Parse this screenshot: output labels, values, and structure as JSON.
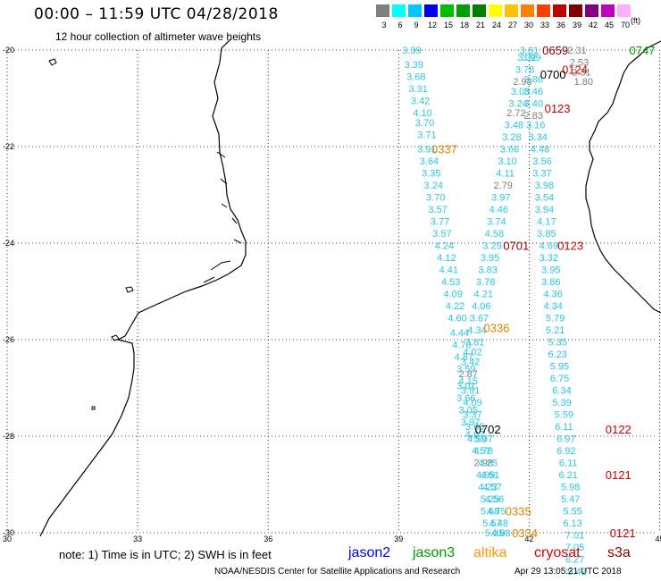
{
  "title": "00:00 – 11:59 UTC 04/28/2018",
  "subtitle": "12 hour collection of altimeter wave heights",
  "scale": {
    "labels": [
      "3",
      "6",
      "9",
      "12",
      "15",
      "18",
      "21",
      "24",
      "27",
      "30",
      "33",
      "36",
      "39",
      "42",
      "45",
      "70"
    ],
    "colors": [
      "#808080",
      "#00ffff",
      "#00c8ff",
      "#0000ff",
      "#00c000",
      "#00a000",
      "#008000",
      "#ffff00",
      "#ffc000",
      "#ff8000",
      "#ff4000",
      "#c00000",
      "#800000",
      "#800080",
      "#c000c0",
      "#ffb0ff"
    ],
    "unit": "(ft)"
  },
  "axes": {
    "lat_labels": [
      "-20",
      "-22",
      "-24",
      "-26",
      "-28",
      "-30"
    ],
    "lon_labels": [
      "30",
      "33",
      "36",
      "39",
      "42",
      "45"
    ]
  },
  "tracks": [
    {
      "color": "#28c8e0",
      "points": [
        {
          "lon": 39.3,
          "lat": -20.0,
          "v": "3.39"
        },
        {
          "lon": 39.35,
          "lat": -20.3,
          "v": "3.39"
        },
        {
          "lon": 39.4,
          "lat": -20.55,
          "v": "3.68"
        },
        {
          "lon": 39.45,
          "lat": -20.8,
          "v": "3.31"
        },
        {
          "lon": 39.5,
          "lat": -21.05,
          "v": "3.42"
        },
        {
          "lon": 39.55,
          "lat": -21.3,
          "v": "4.10"
        },
        {
          "lon": 39.6,
          "lat": -21.5,
          "v": "3.70"
        },
        {
          "lon": 39.65,
          "lat": -21.75,
          "v": "3.71"
        },
        {
          "lon": 39.65,
          "lat": -22.05,
          "v": "3.91"
        },
        {
          "lon": 39.7,
          "lat": -22.3,
          "v": "3.64"
        },
        {
          "lon": 39.75,
          "lat": -22.55,
          "v": "3.35"
        },
        {
          "lon": 39.8,
          "lat": -22.8,
          "v": "3.24"
        },
        {
          "lon": 39.85,
          "lat": -23.05,
          "v": "3.70"
        },
        {
          "lon": 39.9,
          "lat": -23.3,
          "v": "3.57"
        },
        {
          "lon": 39.95,
          "lat": -23.55,
          "v": "3.77"
        },
        {
          "lon": 40.0,
          "lat": -23.8,
          "v": "3.57"
        },
        {
          "lon": 40.05,
          "lat": -24.05,
          "v": "4.24"
        },
        {
          "lon": 40.1,
          "lat": -24.3,
          "v": "4.12"
        },
        {
          "lon": 40.15,
          "lat": -24.55,
          "v": "4.41"
        },
        {
          "lon": 40.2,
          "lat": -24.8,
          "v": "4.53"
        },
        {
          "lon": 40.25,
          "lat": -25.05,
          "v": "4.09"
        },
        {
          "lon": 40.3,
          "lat": -25.3,
          "v": "4.22"
        },
        {
          "lon": 40.35,
          "lat": -25.55,
          "v": "4.60"
        },
        {
          "lon": 40.4,
          "lat": -25.85,
          "v": "4.44"
        },
        {
          "lon": 40.45,
          "lat": -26.1,
          "v": "4.70"
        },
        {
          "lon": 40.5,
          "lat": -26.35,
          "v": "4.87"
        },
        {
          "lon": 40.55,
          "lat": -26.6,
          "v": "3.59"
        },
        {
          "lon": 40.6,
          "lat": -26.85,
          "v": "4.15"
        },
        {
          "lon": 40.65,
          "lat": -27.05,
          "v": "3.91"
        },
        {
          "lon": 40.7,
          "lat": -27.3,
          "v": "4.09"
        },
        {
          "lon": 40.7,
          "lat": -27.55,
          "v": "3.37"
        },
        {
          "lon": 40.75,
          "lat": -27.8,
          "v": "3.65"
        },
        {
          "lon": 40.8,
          "lat": -28.05,
          "v": "4.59"
        },
        {
          "lon": 40.9,
          "lat": -28.3,
          "v": "4.57"
        },
        {
          "lon": 40.95,
          "lat": -28.55,
          "v": "2.98"
        },
        {
          "lon": 41.0,
          "lat": -28.8,
          "v": "4.99"
        },
        {
          "lon": 41.05,
          "lat": -29.05,
          "v": "4.23"
        },
        {
          "lon": 41.1,
          "lat": -29.3,
          "v": "5.25"
        },
        {
          "lon": 41.1,
          "lat": -29.55,
          "v": "5.68"
        },
        {
          "lon": 41.15,
          "lat": -29.8,
          "v": "5.57"
        },
        {
          "lon": 41.2,
          "lat": -30.0,
          "v": "5.35"
        }
      ]
    },
    {
      "color": "#28c8e0",
      "points": [
        {
          "lon": 42.0,
          "lat": -20.0,
          "v": "3.61"
        },
        {
          "lon": 41.95,
          "lat": -20.15,
          "v": "3.32"
        },
        {
          "lon": 41.9,
          "lat": -20.4,
          "v": "3.78"
        },
        {
          "lon": 41.85,
          "lat": -20.65,
          "v": "2.98"
        },
        {
          "lon": 41.8,
          "lat": -20.85,
          "v": "3.05"
        },
        {
          "lon": 41.75,
          "lat": -21.1,
          "v": "3.24"
        },
        {
          "lon": 41.7,
          "lat": -21.3,
          "v": "2.72"
        },
        {
          "lon": 41.65,
          "lat": -21.55,
          "v": "3.48"
        },
        {
          "lon": 41.6,
          "lat": -21.8,
          "v": "3.28"
        },
        {
          "lon": 41.55,
          "lat": -22.05,
          "v": "3.66"
        },
        {
          "lon": 41.5,
          "lat": -22.3,
          "v": "3.10"
        },
        {
          "lon": 41.45,
          "lat": -22.55,
          "v": "4.11"
        },
        {
          "lon": 41.4,
          "lat": -22.8,
          "v": "2.79"
        },
        {
          "lon": 41.35,
          "lat": -23.05,
          "v": "3.97"
        },
        {
          "lon": 41.3,
          "lat": -23.3,
          "v": "4.46"
        },
        {
          "lon": 41.25,
          "lat": -23.55,
          "v": "3.74"
        },
        {
          "lon": 41.2,
          "lat": -23.8,
          "v": "4.58"
        },
        {
          "lon": 41.15,
          "lat": -24.05,
          "v": "3.25"
        },
        {
          "lon": 41.1,
          "lat": -24.3,
          "v": "3.95"
        },
        {
          "lon": 41.05,
          "lat": -24.55,
          "v": "3.83"
        },
        {
          "lon": 41.0,
          "lat": -24.8,
          "v": "3.78"
        },
        {
          "lon": 40.95,
          "lat": -25.05,
          "v": "4.21"
        },
        {
          "lon": 40.9,
          "lat": -25.3,
          "v": "4.06"
        },
        {
          "lon": 40.85,
          "lat": -25.55,
          "v": "3.67"
        },
        {
          "lon": 40.8,
          "lat": -25.8,
          "v": "4.34"
        },
        {
          "lon": 40.75,
          "lat": -26.05,
          "v": "3.81"
        },
        {
          "lon": 40.7,
          "lat": -26.25,
          "v": "4.02"
        },
        {
          "lon": 40.65,
          "lat": -26.45,
          "v": "3.42"
        },
        {
          "lon": 40.6,
          "lat": -26.7,
          "v": "2.87"
        },
        {
          "lon": 40.55,
          "lat": -26.95,
          "v": "3.01"
        },
        {
          "lon": 40.55,
          "lat": -27.2,
          "v": "3.66"
        },
        {
          "lon": 40.6,
          "lat": -27.45,
          "v": "3.05"
        },
        {
          "lon": 40.65,
          "lat": -27.7,
          "v": "3.97"
        },
        {
          "lon": 40.75,
          "lat": -27.95,
          "v": "4.67"
        },
        {
          "lon": 40.95,
          "lat": -28.05,
          "v": "5.07"
        },
        {
          "lon": 40.95,
          "lat": -28.3,
          "v": "4.78"
        },
        {
          "lon": 41.05,
          "lat": -28.55,
          "v": "4.25"
        },
        {
          "lon": 41.1,
          "lat": -28.8,
          "v": "4.51"
        },
        {
          "lon": 41.15,
          "lat": -29.05,
          "v": "4.57"
        },
        {
          "lon": 41.2,
          "lat": -29.3,
          "v": "4.56"
        },
        {
          "lon": 41.25,
          "lat": -29.55,
          "v": "4.75"
        },
        {
          "lon": 41.3,
          "lat": -29.8,
          "v": "4.48"
        },
        {
          "lon": 41.35,
          "lat": -30.0,
          "v": "4.88"
        }
      ]
    },
    {
      "color": "#28c8e0",
      "points": [
        {
          "lon": 42.05,
          "lat": -20.15,
          "v": "3.99"
        },
        {
          "lon": 42.1,
          "lat": -20.6,
          "v": "3.86"
        },
        {
          "lon": 42.1,
          "lat": -20.85,
          "v": "3.46"
        },
        {
          "lon": 42.1,
          "lat": -21.1,
          "v": "3.40"
        },
        {
          "lon": 42.1,
          "lat": -21.35,
          "v": "2.83"
        },
        {
          "lon": 42.15,
          "lat": -21.55,
          "v": "3.16"
        },
        {
          "lon": 42.2,
          "lat": -21.8,
          "v": "3.34"
        },
        {
          "lon": 42.25,
          "lat": -22.05,
          "v": "4.48"
        },
        {
          "lon": 42.3,
          "lat": -22.3,
          "v": "3.56"
        },
        {
          "lon": 42.3,
          "lat": -22.55,
          "v": "3.37"
        },
        {
          "lon": 42.35,
          "lat": -22.8,
          "v": "3.98"
        },
        {
          "lon": 42.35,
          "lat": -23.05,
          "v": "3.54"
        },
        {
          "lon": 42.35,
          "lat": -23.3,
          "v": "3.94"
        },
        {
          "lon": 42.4,
          "lat": -23.55,
          "v": "4.17"
        },
        {
          "lon": 42.4,
          "lat": -23.8,
          "v": "3.85"
        },
        {
          "lon": 42.45,
          "lat": -24.05,
          "v": "4.69"
        },
        {
          "lon": 42.45,
          "lat": -24.3,
          "v": "3.32"
        },
        {
          "lon": 42.5,
          "lat": -24.55,
          "v": "3.95"
        },
        {
          "lon": 42.5,
          "lat": -24.8,
          "v": "3.86"
        },
        {
          "lon": 42.55,
          "lat": -25.05,
          "v": "4.36"
        },
        {
          "lon": 42.55,
          "lat": -25.3,
          "v": "4.34"
        },
        {
          "lon": 42.6,
          "lat": -25.55,
          "v": "5.79"
        },
        {
          "lon": 42.6,
          "lat": -25.8,
          "v": "5.21"
        },
        {
          "lon": 42.65,
          "lat": -26.05,
          "v": "5.35"
        },
        {
          "lon": 42.65,
          "lat": -26.3,
          "v": "6.23"
        },
        {
          "lon": 42.7,
          "lat": -26.55,
          "v": "5.95"
        },
        {
          "lon": 42.7,
          "lat": -26.8,
          "v": "6.75"
        },
        {
          "lon": 42.75,
          "lat": -27.05,
          "v": "6.34"
        },
        {
          "lon": 42.75,
          "lat": -27.3,
          "v": "5.39"
        },
        {
          "lon": 42.8,
          "lat": -27.55,
          "v": "5.59"
        },
        {
          "lon": 42.8,
          "lat": -27.8,
          "v": "6.11"
        },
        {
          "lon": 42.85,
          "lat": -28.05,
          "v": "6.97"
        },
        {
          "lon": 42.85,
          "lat": -28.3,
          "v": "6.92"
        },
        {
          "lon": 42.9,
          "lat": -28.55,
          "v": "6.11"
        },
        {
          "lon": 42.9,
          "lat": -28.8,
          "v": "6.21"
        },
        {
          "lon": 42.95,
          "lat": -29.05,
          "v": "5.98"
        },
        {
          "lon": 42.95,
          "lat": -29.3,
          "v": "5.47"
        },
        {
          "lon": 43.0,
          "lat": -29.55,
          "v": "5.55"
        },
        {
          "lon": 43.0,
          "lat": -29.8,
          "v": "6.13"
        },
        {
          "lon": 43.05,
          "lat": -30.05,
          "v": "7.01"
        },
        {
          "lon": 43.05,
          "lat": -30.3,
          "v": "7.05"
        },
        {
          "lon": 43.05,
          "lat": -30.55,
          "v": "6.27"
        },
        {
          "lon": 43.1,
          "lat": -30.8,
          "v": "5.42"
        }
      ]
    },
    {
      "color": "#909090",
      "points": [
        {
          "lon": 43.1,
          "lat": -20.0,
          "v": "2.31"
        },
        {
          "lon": 43.15,
          "lat": -20.25,
          "v": "2.53"
        },
        {
          "lon": 43.2,
          "lat": -20.45,
          "v": "2.31"
        },
        {
          "lon": 43.25,
          "lat": -20.65,
          "v": "1.80"
        }
      ]
    }
  ],
  "pass_labels": [
    {
      "text": "0659",
      "color": "#8b0000",
      "lon": 42.6,
      "lat": -20.0
    },
    {
      "text": "0747",
      "color": "#009900",
      "lon": 44.6,
      "lat": -20.0
    },
    {
      "text": "0700",
      "color": "#000000",
      "lon": 42.55,
      "lat": -20.5
    },
    {
      "text": "0124",
      "color": "#cc0000",
      "lon": 43.05,
      "lat": -20.4
    },
    {
      "text": "0123",
      "color": "#cc0000",
      "lon": 42.65,
      "lat": -21.2
    },
    {
      "text": "0337",
      "color": "#e08000",
      "lon": 40.05,
      "lat": -22.05
    },
    {
      "text": "0701",
      "color": "#8b0000",
      "lon": 41.7,
      "lat": -24.05
    },
    {
      "text": "0123",
      "color": "#cc0000",
      "lon": 42.95,
      "lat": -24.05
    },
    {
      "text": "0336",
      "color": "#e08000",
      "lon": 41.25,
      "lat": -25.75
    },
    {
      "text": "0702",
      "color": "#000000",
      "lon": 41.05,
      "lat": -27.85
    },
    {
      "text": "0122",
      "color": "#cc0000",
      "lon": 44.05,
      "lat": -27.85
    },
    {
      "text": "0121",
      "color": "#cc0000",
      "lon": 44.05,
      "lat": -28.8
    },
    {
      "text": "0335",
      "color": "#e08000",
      "lon": 41.75,
      "lat": -29.55
    },
    {
      "text": "0334",
      "color": "#e08000",
      "lon": 41.9,
      "lat": -30.0
    },
    {
      "text": "0121",
      "color": "#cc0000",
      "lon": 44.15,
      "lat": -30.0
    }
  ],
  "footer": {
    "note": "note:  1) Time is in UTC; 2) SWH is in feet",
    "legend": [
      {
        "name": "jason2",
        "color": "#0000ff"
      },
      {
        "name": "jason3",
        "color": "#009900"
      },
      {
        "name": "altika",
        "color": "#ff9900"
      },
      {
        "name": "cryosat",
        "color": "#dd0000"
      },
      {
        "name": "s3a",
        "color": "#8b0000"
      }
    ],
    "credit": "NOAA/NESDIS Center for Satellite Applications and Research",
    "timestamp": "Apr 29 13:05:21 UTC 2018"
  }
}
